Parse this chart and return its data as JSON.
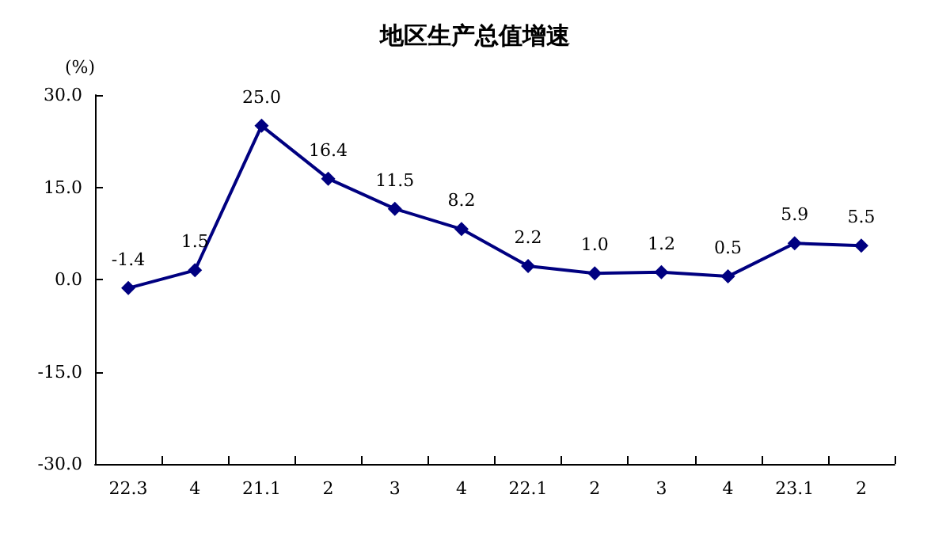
{
  "chart_data": {
    "type": "line",
    "title": "地区生产总值增速",
    "ylabel": "(%)",
    "categories": [
      "22.3",
      "4",
      "21.1",
      "2",
      "3",
      "4",
      "22.1",
      "2",
      "3",
      "4",
      "23.1",
      "2"
    ],
    "series": [
      {
        "color": "#000080",
        "values": [
          -1.4,
          1.5,
          25.0,
          16.4,
          11.5,
          8.2,
          2.2,
          1.0,
          1.2,
          0.5,
          5.9,
          5.5
        ],
        "value_labels": [
          "-1.4",
          "1.5",
          "25.0",
          "16.4",
          "11.5",
          "8.2",
          "2.2",
          "1.0",
          "1.2",
          "0.5",
          "5.9",
          "5.5"
        ]
      }
    ],
    "ylim": [
      -30,
      30
    ],
    "yticks": [
      {
        "value": -30,
        "label": "-30.0"
      },
      {
        "value": -15,
        "label": "-15.0"
      },
      {
        "value": 0,
        "label": "0.0"
      },
      {
        "value": 15,
        "label": "15.0"
      },
      {
        "value": 30,
        "label": "30.0"
      }
    ],
    "marker": "diamond",
    "line_style": "solid",
    "grid": false
  }
}
